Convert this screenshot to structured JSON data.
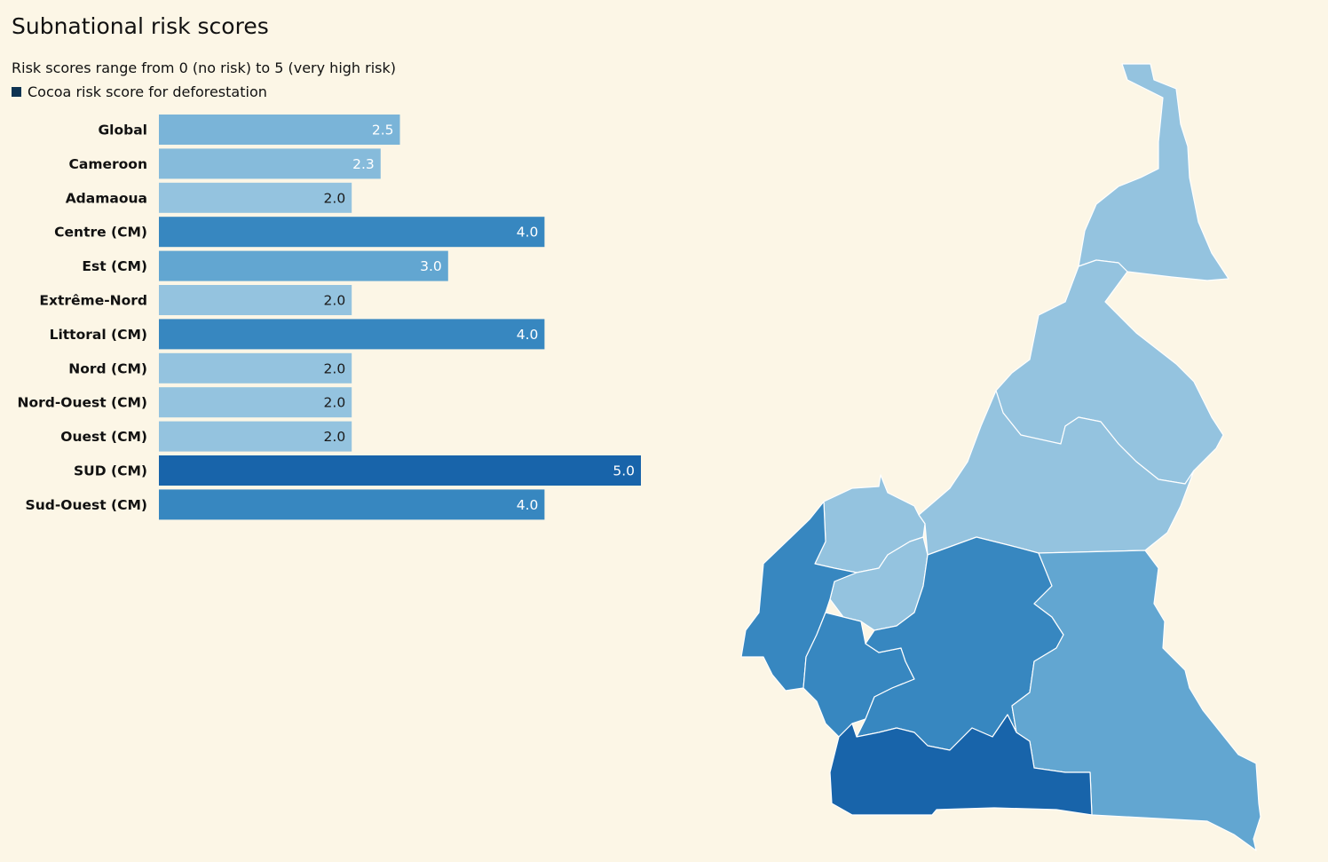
{
  "title": "Subnational risk scores",
  "subtitle": "Risk scores range from 0 (no risk) to 5 (very high risk)",
  "legend": {
    "label": "Cocoa risk score for deforestation",
    "color": "#0d3352"
  },
  "colors": {
    "background": "#fcf6e6",
    "region_border": "#ffffff"
  },
  "chart_data": [
    {
      "type": "bar",
      "orientation": "horizontal",
      "categories": [
        "Global",
        "Cameroon",
        "Adamaoua",
        "Centre (CM)",
        "Est (CM)",
        "Extrême-Nord",
        "Littoral (CM)",
        "Nord (CM)",
        "Nord-Ouest (CM)",
        "Ouest (CM)",
        "SUD (CM)",
        "Sud-Ouest (CM)"
      ],
      "series": [
        {
          "name": "Cocoa risk score for deforestation",
          "values": [
            2.5,
            2.3,
            2.0,
            4.0,
            3.0,
            2.0,
            4.0,
            2.0,
            2.0,
            2.0,
            5.0,
            4.0
          ]
        }
      ],
      "value_labels": [
        "2.5",
        "2.3",
        "2.0",
        "4.0",
        "3.0",
        "2.0",
        "4.0",
        "2.0",
        "2.0",
        "2.0",
        "5.0",
        "4.0"
      ],
      "xlim": [
        0,
        5
      ],
      "grid": false,
      "color_scale": {
        "2.0": "#94c3df",
        "2.3": "#86bbdb",
        "2.5": "#7ab4d8",
        "3.0": "#62a6d1",
        "4.0": "#3787c0",
        "5.0": "#1864aa"
      }
    },
    {
      "type": "choropleth",
      "regions": [
        {
          "name": "Extrême-Nord",
          "value": 2.0
        },
        {
          "name": "Nord",
          "value": 2.0
        },
        {
          "name": "Adamaoua",
          "value": 2.0
        },
        {
          "name": "Nord-Ouest",
          "value": 2.0
        },
        {
          "name": "Ouest",
          "value": 2.0
        },
        {
          "name": "Sud-Ouest",
          "value": 4.0
        },
        {
          "name": "Littoral",
          "value": 4.0
        },
        {
          "name": "Centre",
          "value": 4.0
        },
        {
          "name": "Est",
          "value": 3.0
        },
        {
          "name": "Sud",
          "value": 5.0
        }
      ]
    }
  ]
}
